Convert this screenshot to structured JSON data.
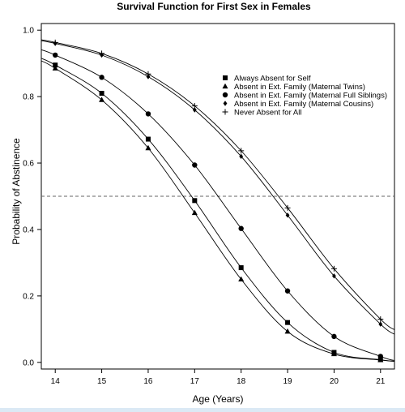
{
  "chart_data": {
    "type": "line",
    "title": "Survival Function for First Sex in Females",
    "xlabel": "Age (Years)",
    "ylabel": "Probability of Abstinence",
    "xlim": [
      13.7,
      21.3
    ],
    "ylim": [
      -0.02,
      1.02
    ],
    "x_ticks": [
      14,
      15,
      16,
      17,
      18,
      19,
      20,
      21
    ],
    "y_ticks": [
      0.0,
      0.2,
      0.4,
      0.6,
      0.8,
      1.0
    ],
    "y_tick_labels": [
      "0.0",
      "0.2",
      "0.4",
      "0.6",
      "0.8",
      "1.0"
    ],
    "reference_line": {
      "y": 0.5,
      "style": "dashed"
    },
    "legend_position": "top-right",
    "grid": false,
    "series": [
      {
        "name": "Always Absent for Self",
        "marker": "square",
        "x": [
          14,
          15,
          16,
          17,
          18,
          19,
          20,
          21
        ],
        "y": [
          0.895,
          0.81,
          0.672,
          0.487,
          0.285,
          0.12,
          0.03,
          0.008
        ]
      },
      {
        "name": "Absent in Ext. Family (Maternal Twins)",
        "marker": "triangle",
        "x": [
          14,
          15,
          16,
          17,
          18,
          19,
          20,
          21
        ],
        "y": [
          0.885,
          0.79,
          0.645,
          0.45,
          0.25,
          0.093,
          0.025,
          0.007
        ]
      },
      {
        "name": "Absent in Ext. Family (Maternal Full Siblings)",
        "marker": "circle",
        "x": [
          14,
          15,
          16,
          17,
          18,
          19,
          20,
          21
        ],
        "y": [
          0.925,
          0.858,
          0.748,
          0.594,
          0.403,
          0.215,
          0.078,
          0.018
        ]
      },
      {
        "name": "Absent in Ext. Family (Maternal Cousins)",
        "marker": "diamond",
        "x": [
          14,
          15,
          16,
          17,
          18,
          19,
          20,
          21
        ],
        "y": [
          0.96,
          0.925,
          0.86,
          0.76,
          0.62,
          0.443,
          0.26,
          0.115
        ]
      },
      {
        "name": "Never Absent for All",
        "marker": "plus",
        "x": [
          14,
          15,
          16,
          17,
          18,
          19,
          20,
          21
        ],
        "y": [
          0.963,
          0.93,
          0.868,
          0.772,
          0.637,
          0.465,
          0.282,
          0.13
        ]
      }
    ]
  }
}
